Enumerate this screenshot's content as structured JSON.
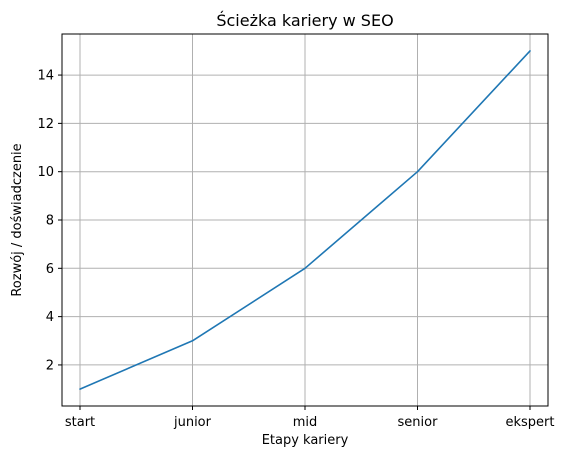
{
  "chart_data": {
    "type": "line",
    "title": "Ścieżka kariery w SEO",
    "xlabel": "Etapy kariery",
    "ylabel": "Rozwój / doświadczenie",
    "categories": [
      "start",
      "junior",
      "mid",
      "senior",
      "ekspert"
    ],
    "series": [
      {
        "values": [
          1,
          3,
          6,
          10,
          15
        ],
        "color": "#1f77b4"
      }
    ],
    "ylim": [
      0.3,
      15.7
    ],
    "yticks": [
      2,
      4,
      6,
      8,
      10,
      12,
      14
    ],
    "grid": true
  }
}
